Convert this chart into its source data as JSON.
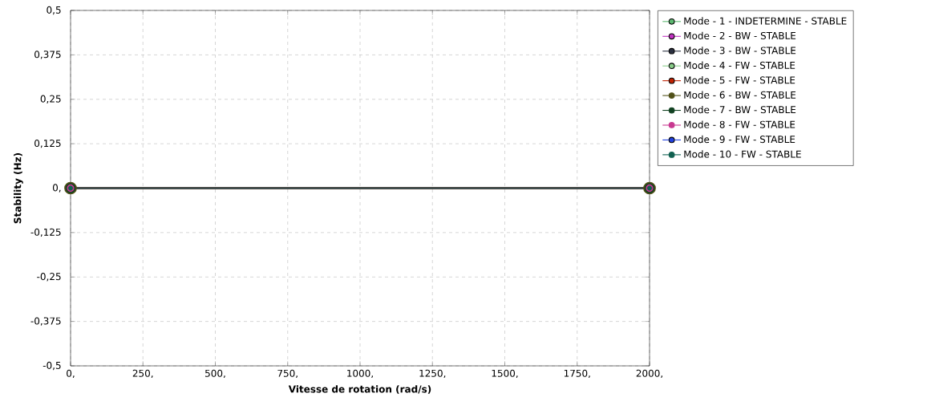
{
  "chart_data": {
    "type": "line",
    "xlabel": "Vitesse de rotation (rad/s)",
    "ylabel": "Stability (Hz)",
    "x": [
      0,
      2000
    ],
    "series": [
      {
        "name": "Mode - 1  - INDETERMINE  - STABLE",
        "color": "#5cb870",
        "values": [
          null,
          null
        ]
      },
      {
        "name": "Mode - 2  - BW  - STABLE",
        "color": "#c030c0",
        "values": [
          null,
          null
        ]
      },
      {
        "name": "Mode - 3  - BW  - STABLE",
        "color": "#2a3040",
        "values": [
          null,
          null
        ]
      },
      {
        "name": "Mode - 4  - FW  - STABLE",
        "color": "#88cc88",
        "values": [
          null,
          null
        ]
      },
      {
        "name": "Mode - 5  - FW  - STABLE",
        "color": "#c02000",
        "values": [
          null,
          null
        ]
      },
      {
        "name": "Mode - 6  - BW  - STABLE",
        "color": "#505018",
        "values": [
          0,
          0
        ]
      },
      {
        "name": "Mode - 7  - BW  - STABLE",
        "color": "#104020",
        "values": [
          0,
          0
        ]
      },
      {
        "name": "Mode - 8  - FW  - STABLE",
        "color": "#c83890",
        "values": [
          0,
          0
        ]
      },
      {
        "name": "Mode - 9  - FW  - STABLE",
        "color": "#2040e0",
        "values": [
          null,
          null
        ]
      },
      {
        "name": "Mode - 10  - FW  - STABLE",
        "color": "#106050",
        "values": [
          0,
          0
        ]
      }
    ],
    "xlim": [
      0,
      2000
    ],
    "xticks": [
      {
        "value": 0,
        "label": "0,"
      },
      {
        "value": 250,
        "label": "250,"
      },
      {
        "value": 500,
        "label": "500,"
      },
      {
        "value": 750,
        "label": "750,"
      },
      {
        "value": 1000,
        "label": "1000,"
      },
      {
        "value": 1250,
        "label": "1250,"
      },
      {
        "value": 1500,
        "label": "1500,"
      },
      {
        "value": 1750,
        "label": "1750,"
      },
      {
        "value": 2000,
        "label": "2000,"
      }
    ],
    "ylim": [
      -0.5,
      0.5
    ],
    "yticks": [
      {
        "value": -0.5,
        "label": "-0,5"
      },
      {
        "value": -0.375,
        "label": "-0,375"
      },
      {
        "value": -0.25,
        "label": "-0,25"
      },
      {
        "value": -0.125,
        "label": "-0,125"
      },
      {
        "value": 0,
        "label": "0,"
      },
      {
        "value": 0.125,
        "label": "0,125"
      },
      {
        "value": 0.25,
        "label": "0,25"
      },
      {
        "value": 0.375,
        "label": "0,375"
      },
      {
        "value": 0.5,
        "label": "0,5"
      }
    ],
    "grid": true,
    "legend": "top right",
    "marker": "circle",
    "line_style": "solid"
  }
}
